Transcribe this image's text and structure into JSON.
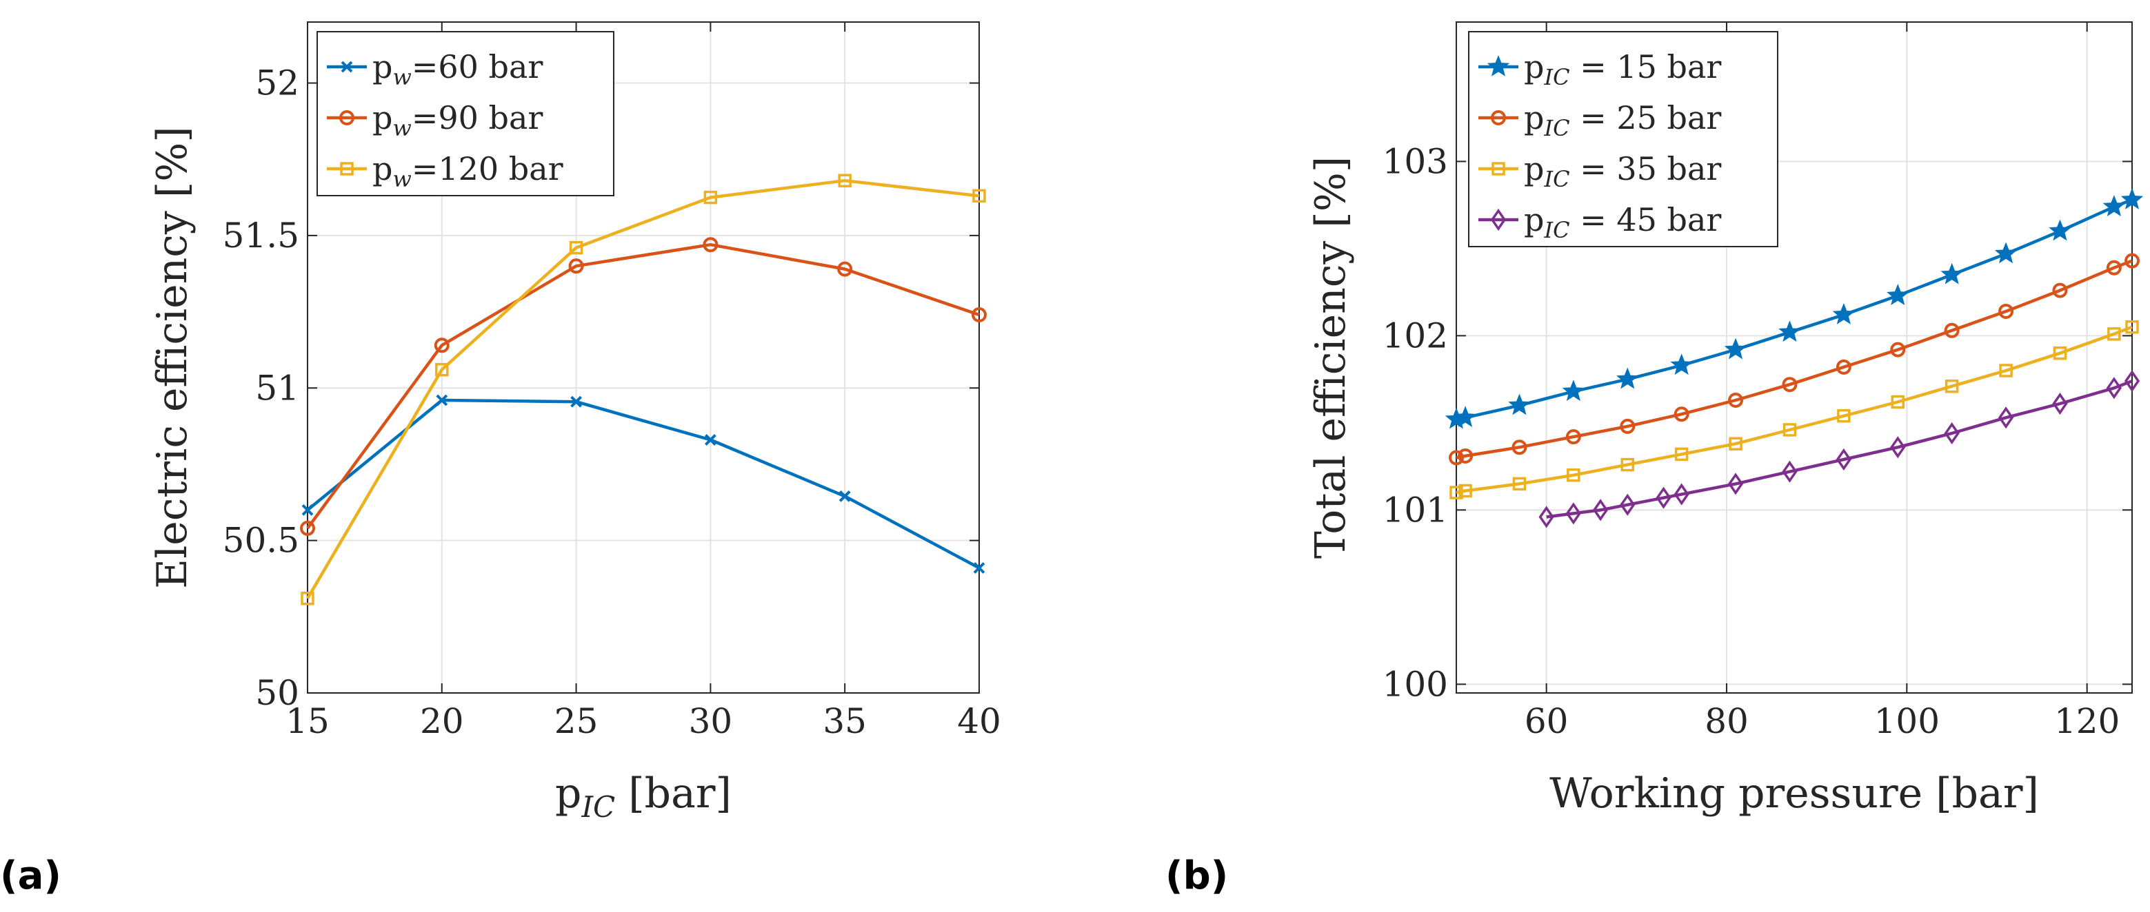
{
  "chart_data": [
    {
      "panel_label": "(a)",
      "type": "line",
      "title": "",
      "xlabel_main": "p",
      "xlabel_sub": "IC",
      "xlabel_unit": "[bar]",
      "ylabel": "Electric efficiency [%]",
      "xlim": [
        15,
        40
      ],
      "ylim": [
        50,
        52.2
      ],
      "xticks": [
        15,
        20,
        25,
        30,
        35,
        40
      ],
      "xtick_labels": [
        "15",
        "20",
        "25",
        "30",
        "35",
        "40"
      ],
      "yticks": [
        50,
        50.5,
        51,
        51.5,
        52
      ],
      "ytick_labels": [
        "50",
        "50.5",
        "51",
        "51.5",
        "52"
      ],
      "grid": true,
      "legend_position": "top-left",
      "series": [
        {
          "name": "pw=60 bar",
          "legend_main": "p",
          "legend_sub": "w",
          "legend_rest": "=60 bar",
          "color": "#0072BD",
          "marker": "x",
          "x": [
            15,
            20,
            25,
            30,
            35,
            40
          ],
          "y": [
            50.6,
            50.96,
            50.955,
            50.83,
            50.645,
            50.41
          ]
        },
        {
          "name": "pw=90 bar",
          "legend_main": "p",
          "legend_sub": "w",
          "legend_rest": "=90 bar",
          "color": "#D95319",
          "marker": "o",
          "x": [
            15,
            20,
            25,
            30,
            35,
            40
          ],
          "y": [
            50.54,
            51.14,
            51.4,
            51.47,
            51.39,
            51.24
          ]
        },
        {
          "name": "pw=120 bar",
          "legend_main": "p",
          "legend_sub": "w",
          "legend_rest": "=120 bar",
          "color": "#EDB120",
          "marker": "s",
          "x": [
            15,
            20,
            25,
            30,
            35,
            40
          ],
          "y": [
            50.31,
            51.06,
            51.46,
            51.625,
            51.68,
            51.63
          ]
        }
      ]
    },
    {
      "panel_label": "(b)",
      "type": "line",
      "title": "",
      "xlabel": "Working pressure [bar]",
      "ylabel": "Total efficiency [%]",
      "xlim": [
        50,
        125
      ],
      "ylim": [
        99.95,
        103.8
      ],
      "xticks": [
        60,
        80,
        100,
        120
      ],
      "xtick_labels": [
        "60",
        "80",
        "100",
        "120"
      ],
      "yticks": [
        100,
        101,
        102,
        103
      ],
      "ytick_labels": [
        "100",
        "101",
        "102",
        "103"
      ],
      "grid": true,
      "legend_position": "top-left",
      "series": [
        {
          "name": "pIC = 15 bar",
          "legend_main": "p",
          "legend_sub": "IC",
          "legend_rest": " = 15 bar",
          "color": "#0072BD",
          "marker": "star",
          "x": [
            50,
            51,
            57,
            63,
            69,
            75,
            81,
            87,
            93,
            99,
            105,
            111,
            117,
            123,
            125
          ],
          "y": [
            101.52,
            101.53,
            101.6,
            101.68,
            101.75,
            101.83,
            101.92,
            102.02,
            102.12,
            102.23,
            102.35,
            102.47,
            102.6,
            102.74,
            102.78
          ]
        },
        {
          "name": "pIC = 25 bar",
          "legend_main": "p",
          "legend_sub": "IC",
          "legend_rest": " = 25 bar",
          "color": "#D95319",
          "marker": "o",
          "x": [
            50,
            51,
            57,
            63,
            69,
            75,
            81,
            87,
            93,
            99,
            105,
            111,
            117,
            123,
            125
          ],
          "y": [
            101.3,
            101.31,
            101.36,
            101.42,
            101.48,
            101.55,
            101.63,
            101.72,
            101.82,
            101.92,
            102.03,
            102.14,
            102.26,
            102.39,
            102.43
          ]
        },
        {
          "name": "pIC = 35 bar",
          "legend_main": "p",
          "legend_sub": "IC",
          "legend_rest": " = 35 bar",
          "color": "#EDB120",
          "marker": "s",
          "x": [
            50,
            51,
            57,
            63,
            69,
            75,
            81,
            87,
            93,
            99,
            105,
            111,
            117,
            123,
            125
          ],
          "y": [
            101.1,
            101.11,
            101.15,
            101.2,
            101.26,
            101.32,
            101.38,
            101.46,
            101.54,
            101.62,
            101.71,
            101.8,
            101.9,
            102.01,
            102.05
          ]
        },
        {
          "name": "pIC = 45 bar",
          "legend_main": "p",
          "legend_sub": "IC",
          "legend_rest": " = 45 bar",
          "color": "#7E2F8E",
          "marker": "diamond",
          "x": [
            60,
            63,
            66,
            69,
            73,
            75,
            81,
            87,
            93,
            99,
            105,
            111,
            117,
            123,
            125
          ],
          "y": [
            100.96,
            100.98,
            101.0,
            101.03,
            101.07,
            101.09,
            101.15,
            101.22,
            101.29,
            101.36,
            101.44,
            101.53,
            101.61,
            101.7,
            101.74
          ]
        }
      ]
    }
  ]
}
